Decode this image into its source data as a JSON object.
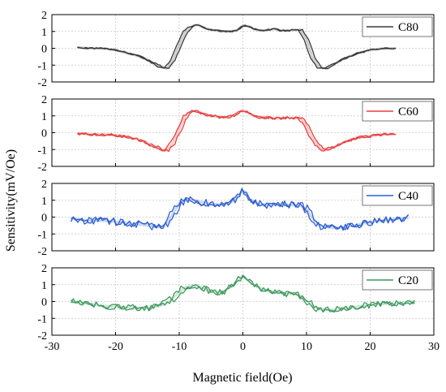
{
  "chart_data": {
    "type": "line",
    "xlabel": "Magnetic field(Oe)",
    "ylabel": "Sensitivity(mV/Oe)",
    "xlim": [
      -30,
      30
    ],
    "xticks": [
      -30,
      -20,
      -10,
      0,
      10,
      20,
      30
    ],
    "ylim": [
      -2,
      2
    ],
    "yticks": [
      -2,
      -1,
      0,
      1,
      2
    ],
    "grid": true,
    "legend_position": "top-right",
    "panels": [
      {
        "name": "C80",
        "color": "#3a3a3a",
        "noise": 0.04,
        "x": [
          -26,
          -24,
          -22,
          -20,
          -18,
          -16,
          -14,
          -13,
          -12,
          -11,
          -10,
          -9,
          -8,
          -7,
          -6,
          -5,
          -4,
          -3,
          -2,
          -1,
          0,
          1,
          2,
          3,
          4,
          5,
          6,
          7,
          8,
          9,
          10,
          11,
          12,
          13,
          14,
          16,
          18,
          20,
          22,
          24
        ],
        "y": [
          0.05,
          0.0,
          0.0,
          -0.1,
          -0.3,
          -0.5,
          -0.9,
          -1.1,
          -1.2,
          -0.7,
          0.2,
          1.0,
          1.3,
          1.4,
          1.2,
          1.1,
          1.05,
          1.0,
          1.0,
          1.05,
          1.35,
          1.3,
          1.1,
          1.05,
          1.1,
          1.15,
          1.05,
          1.05,
          1.1,
          1.1,
          0.5,
          -0.6,
          -1.15,
          -1.2,
          -1.0,
          -0.6,
          -0.3,
          -0.1,
          0.0,
          0.0
        ]
      },
      {
        "name": "C60",
        "color": "#e8403f",
        "noise": 0.08,
        "x": [
          -26,
          -24,
          -22,
          -20,
          -18,
          -16,
          -14,
          -13,
          -12,
          -11,
          -10,
          -9,
          -8,
          -7,
          -6,
          -5,
          -4,
          -3,
          -2,
          -1,
          0,
          1,
          2,
          3,
          4,
          5,
          6,
          7,
          8,
          9,
          10,
          11,
          12,
          13,
          14,
          16,
          18,
          20,
          22,
          24
        ],
        "y": [
          -0.05,
          -0.1,
          -0.1,
          -0.15,
          -0.25,
          -0.45,
          -0.8,
          -1.0,
          -1.05,
          -0.6,
          0.2,
          1.0,
          1.3,
          1.25,
          1.1,
          1.0,
          0.95,
          0.9,
          0.95,
          1.1,
          1.35,
          1.15,
          0.95,
          0.9,
          0.9,
          0.85,
          0.85,
          0.9,
          0.85,
          0.9,
          0.4,
          -0.4,
          -0.85,
          -1.05,
          -0.9,
          -0.55,
          -0.3,
          -0.2,
          -0.1,
          -0.1
        ]
      },
      {
        "name": "C40",
        "color": "#2f5fd0",
        "noise": 0.22,
        "x": [
          -27,
          -25,
          -23,
          -21,
          -19,
          -17,
          -15,
          -13,
          -12,
          -11,
          -10,
          -9,
          -8,
          -7,
          -6,
          -5,
          -4,
          -3,
          -2,
          -1,
          0,
          1,
          2,
          3,
          4,
          5,
          6,
          7,
          8,
          9,
          10,
          11,
          12,
          14,
          16,
          18,
          20,
          22,
          24,
          26
        ],
        "y": [
          -0.05,
          -0.2,
          -0.2,
          -0.25,
          -0.3,
          -0.4,
          -0.5,
          -0.6,
          -0.4,
          0.2,
          0.8,
          1.0,
          1.05,
          0.95,
          0.85,
          0.8,
          0.75,
          0.75,
          0.85,
          1.1,
          1.65,
          1.1,
          0.85,
          0.75,
          0.7,
          0.7,
          0.75,
          0.75,
          0.7,
          0.7,
          0.45,
          -0.1,
          -0.5,
          -0.65,
          -0.6,
          -0.45,
          -0.3,
          -0.2,
          -0.1,
          -0.05
        ]
      },
      {
        "name": "C20",
        "color": "#3f9a5e",
        "noise": 0.18,
        "x": [
          -27,
          -25,
          -23,
          -21,
          -19,
          -17,
          -15,
          -13,
          -12,
          -11,
          -10,
          -9,
          -8,
          -7,
          -6,
          -5,
          -4,
          -3,
          -2,
          -1,
          0,
          1,
          2,
          3,
          4,
          5,
          6,
          7,
          8,
          9,
          10,
          11,
          12,
          14,
          16,
          18,
          20,
          22,
          24,
          26,
          27
        ],
        "y": [
          0.0,
          -0.1,
          -0.2,
          -0.3,
          -0.35,
          -0.35,
          -0.4,
          -0.25,
          -0.1,
          0.2,
          0.55,
          0.85,
          0.95,
          0.9,
          0.75,
          0.6,
          0.55,
          0.6,
          0.85,
          1.2,
          1.55,
          1.2,
          0.9,
          0.75,
          0.65,
          0.55,
          0.5,
          0.45,
          0.45,
          0.35,
          0.05,
          -0.25,
          -0.45,
          -0.5,
          -0.4,
          -0.3,
          -0.2,
          -0.15,
          -0.1,
          -0.05,
          0.0
        ]
      }
    ]
  }
}
